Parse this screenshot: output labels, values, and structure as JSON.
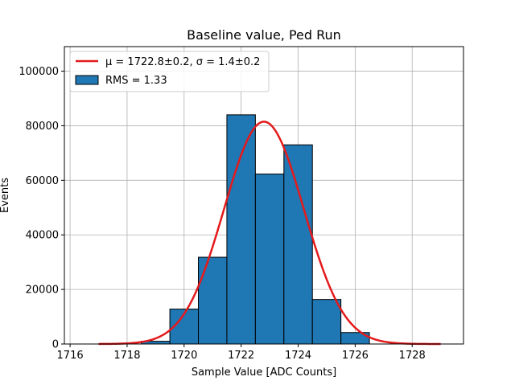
{
  "chart_data": {
    "type": "bar",
    "title": "Baseline value, Ped Run",
    "xlabel": "Sample Value [ADC Counts]",
    "ylabel": "Events",
    "xlim": [
      1715.8,
      1729.8
    ],
    "ylim": [
      0,
      109000
    ],
    "grid": true,
    "legend_position": "top-left",
    "x_ticks": [
      1716,
      1718,
      1720,
      1722,
      1724,
      1726,
      1728
    ],
    "x_tick_labels": [
      "1716",
      "1718",
      "1720",
      "1722",
      "1724",
      "1726",
      "1728"
    ],
    "y_ticks": [
      0,
      20000,
      40000,
      60000,
      80000,
      100000
    ],
    "y_tick_labels": [
      "0",
      "20000",
      "40000",
      "60000",
      "80000",
      "100000"
    ],
    "histogram": {
      "name": "RMS = 1.33",
      "color": "#1f77b4",
      "edge_color": "#000000",
      "bins": [
        {
          "x0": 1718.5,
          "x1": 1719.5,
          "count": 1000
        },
        {
          "x0": 1719.5,
          "x1": 1720.5,
          "count": 12800
        },
        {
          "x0": 1720.5,
          "x1": 1721.5,
          "count": 31800
        },
        {
          "x0": 1721.5,
          "x1": 1722.5,
          "count": 84000
        },
        {
          "x0": 1722.5,
          "x1": 1723.5,
          "count": 62300
        },
        {
          "x0": 1723.5,
          "x1": 1724.5,
          "count": 73000
        },
        {
          "x0": 1724.5,
          "x1": 1725.5,
          "count": 16300
        },
        {
          "x0": 1725.5,
          "x1": 1726.5,
          "count": 4200
        }
      ]
    },
    "fit": {
      "type": "gaussian",
      "legend_mu": "μ = 1722.8±0.2, σ = 1.4±0.2",
      "color": "#e41a1c",
      "mu": 1722.8,
      "sigma": 1.4,
      "amplitude": 81500,
      "x_range": [
        1717,
        1729
      ]
    }
  }
}
